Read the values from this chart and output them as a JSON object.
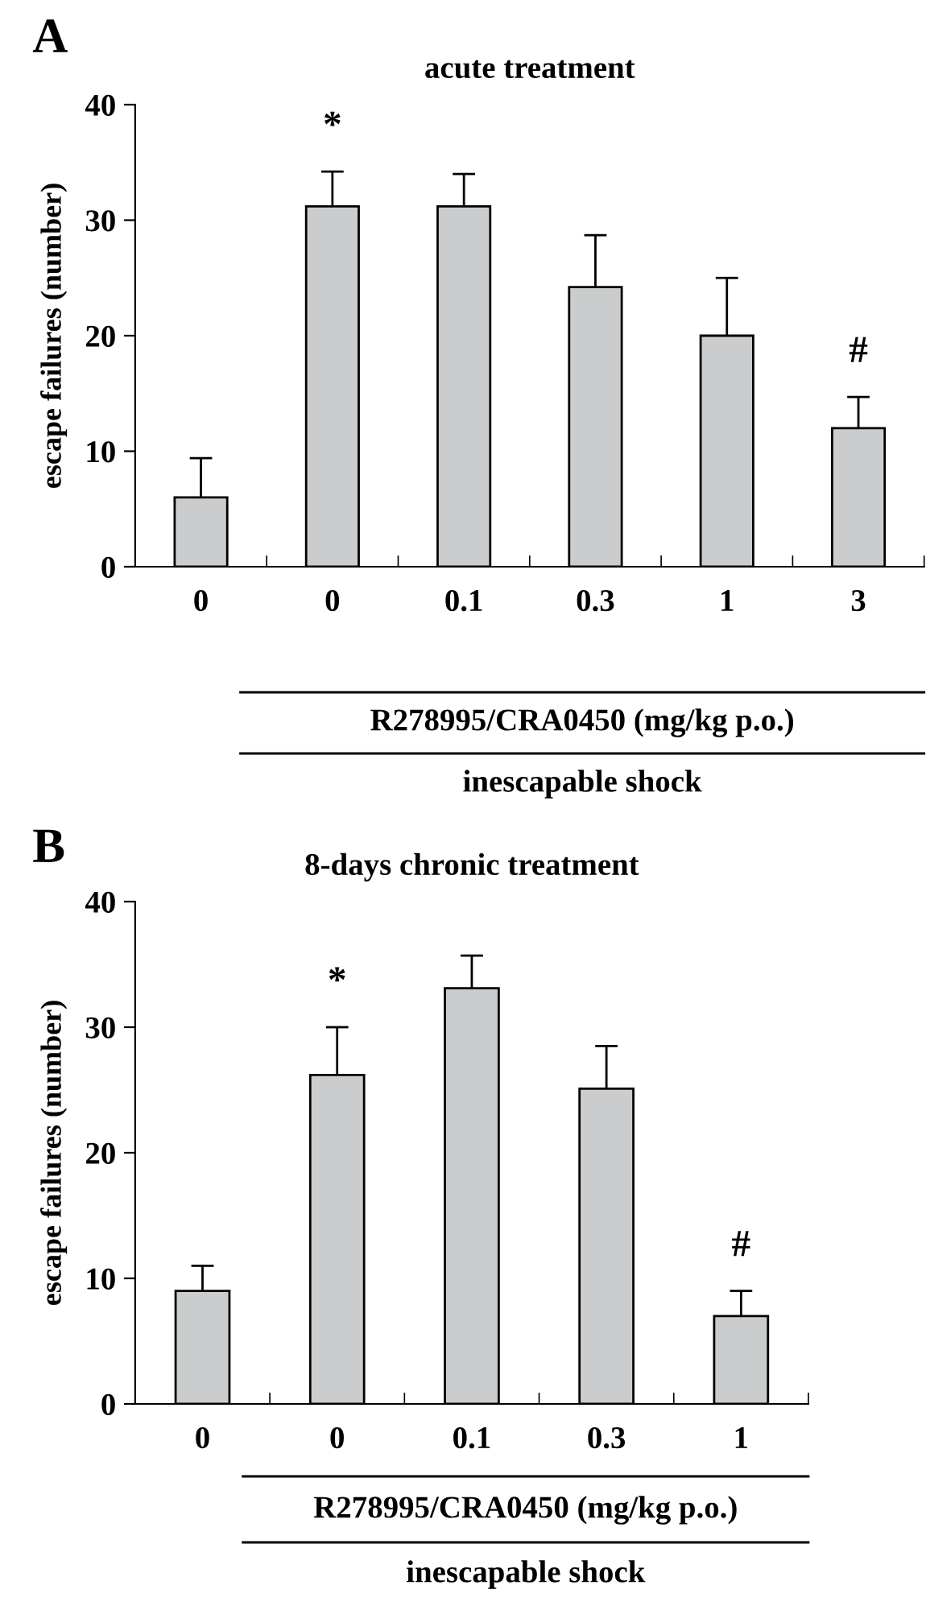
{
  "chart_data": [
    {
      "type": "bar",
      "title": "acute treatment",
      "ylabel": "escape failures (number)",
      "xlabel": "R278995/CRA0450 (mg/kg p.o.)",
      "categories": [
        "0",
        "0",
        "0.1",
        "0.3",
        "1",
        "3"
      ],
      "values": [
        6,
        31.2,
        31.2,
        24.2,
        20,
        12
      ],
      "errors": [
        3.4,
        3,
        2.8,
        4.5,
        5,
        2.7
      ],
      "value_labels": [
        null,
        "*",
        null,
        null,
        null,
        "#"
      ],
      "color": "#cbcccd",
      "ylim": [
        0,
        40
      ],
      "yticks": [
        0,
        10,
        20,
        30,
        40
      ],
      "grid": false,
      "legend": false,
      "annotations": [
        "A",
        "inescapable shock"
      ]
    },
    {
      "type": "bar",
      "title": "8-days chronic treatment",
      "ylabel": "escape failures (number)",
      "xlabel": "R278995/CRA0450 (mg/kg p.o.)",
      "categories": [
        "0",
        "0",
        "0.1",
        "0.3",
        "1"
      ],
      "values": [
        9,
        26.2,
        33.1,
        25.1,
        7
      ],
      "errors": [
        2,
        3.8,
        2.6,
        3.4,
        2
      ],
      "value_labels": [
        null,
        "*",
        null,
        null,
        "#"
      ],
      "color": "#cbcccd",
      "ylim": [
        0,
        40
      ],
      "yticks": [
        0,
        10,
        20,
        30,
        40
      ],
      "grid": false,
      "legend": false,
      "annotations": [
        "B",
        "inescapable shock"
      ]
    }
  ]
}
